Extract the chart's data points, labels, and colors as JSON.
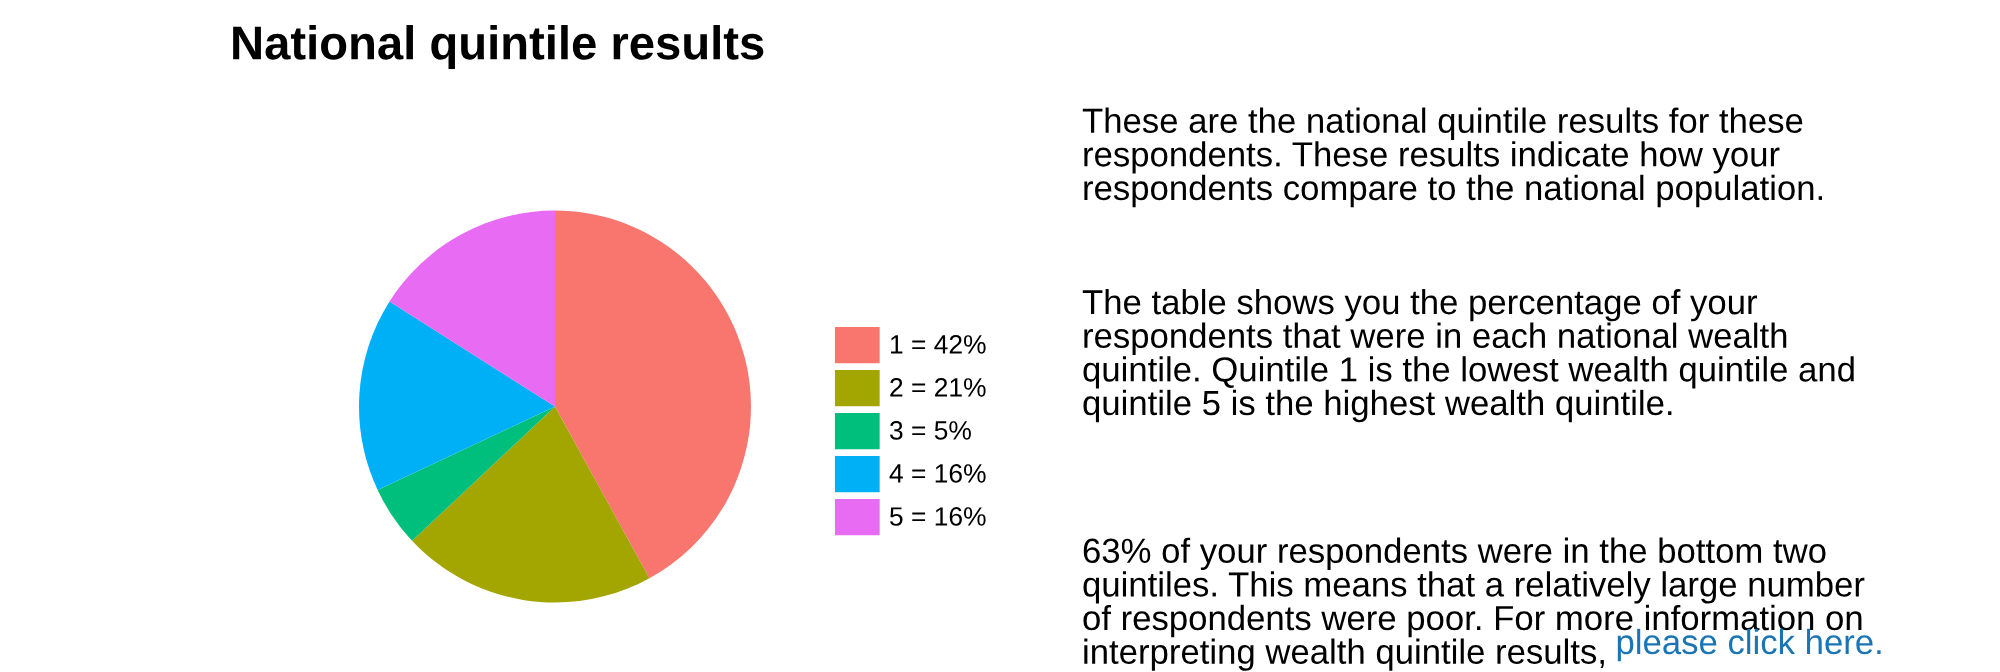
{
  "chart_data": {
    "type": "pie",
    "title": "National quintile results",
    "categories": [
      "1 = 42%",
      "2 = 21%",
      "3 = 5%",
      "4 = 16%",
      "5 = 16%"
    ],
    "values": [
      42,
      21,
      5,
      16,
      16
    ],
    "colors": [
      "#f8766d",
      "#a3a500",
      "#00bf7d",
      "#00b0f6",
      "#e76bf3"
    ],
    "legend": "right",
    "annotations": [
      "These are the national quintile results for these\nrespondents. These results indicate how your\nrespondents compare to the national population.",
      "The table shows you the percentage of your\nrespondents that were in each national wealth\nquintile. Quintile 1 is the lowest wealth quintile and\nquintile 5 is the highest wealth quintile.",
      "63% of your respondents were in the bottom two\nquintiles. This means that a relatively large number\nof respondents were poor. For more information on\ninterpreting wealth quintile results,",
      "please click here."
    ]
  }
}
